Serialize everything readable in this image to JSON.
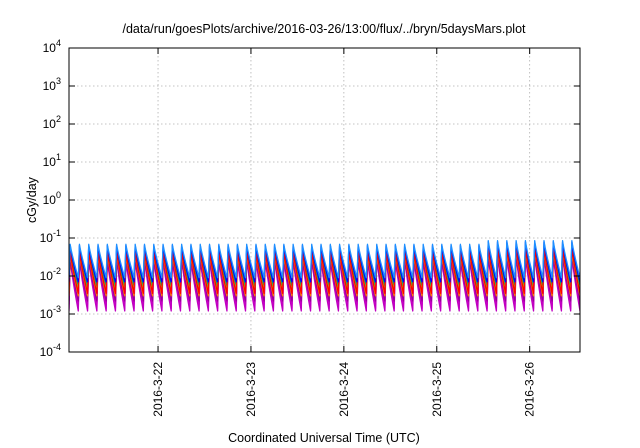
{
  "chart_data": {
    "type": "line",
    "title": "/data/run/goesPlots/archive/2016-03-26/13:00/flux/../bryn/5daysMars.plot",
    "xlabel": "Coordinated Universal Time (UTC)",
    "ylabel": "cGy/day",
    "y_scale": "log",
    "ylim": [
      0.0001,
      10000
    ],
    "y_ticks": [
      {
        "value": 0.0001,
        "base": "10",
        "exp": "-4"
      },
      {
        "value": 0.001,
        "base": "10",
        "exp": "-3"
      },
      {
        "value": 0.01,
        "base": "10",
        "exp": "-2"
      },
      {
        "value": 0.1,
        "base": "10",
        "exp": "-1"
      },
      {
        "value": 1,
        "base": "10",
        "exp": "0"
      },
      {
        "value": 10,
        "base": "10",
        "exp": "1"
      },
      {
        "value": 100,
        "base": "10",
        "exp": "2"
      },
      {
        "value": 1000,
        "base": "10",
        "exp": "3"
      },
      {
        "value": 10000,
        "base": "10",
        "exp": "4"
      }
    ],
    "xlim": [
      "2016-03-21 01:00",
      "2016-03-26 13:00"
    ],
    "x_ticks": [
      {
        "value": "2016-03-22 00:00",
        "label": "2016-3-22"
      },
      {
        "value": "2016-03-23 00:00",
        "label": "2016-3-23"
      },
      {
        "value": "2016-03-24 00:00",
        "label": "2016-3-24"
      },
      {
        "value": "2016-03-25 00:00",
        "label": "2016-3-25"
      },
      {
        "value": "2016-03-26 00:00",
        "label": "2016-3-26"
      }
    ],
    "grid": true,
    "legend": "none",
    "cycles_per_day": 10,
    "series": [
      {
        "color": "#ff00ff",
        "peak": 0.03,
        "trough": 0.0014
      },
      {
        "color": "#cc00cc",
        "peak": 0.034,
        "trough": 0.0018
      },
      {
        "color": "#c000c0",
        "peak": 0.028,
        "trough": 0.0012
      },
      {
        "color": "#990099",
        "peak": 0.03,
        "trough": 0.0022
      },
      {
        "color": "#00bfbf",
        "peak": 0.05,
        "trough": 0.005
      },
      {
        "color": "#008b8b",
        "peak": 0.045,
        "trough": 0.006
      },
      {
        "color": "#00a050",
        "peak": 0.04,
        "trough": 0.0045
      },
      {
        "color": "#7fff00",
        "peak": 0.04,
        "trough": 0.004
      },
      {
        "color": "#ff7f00",
        "peak": 0.04,
        "trough": 0.003
      },
      {
        "color": "#ff0000",
        "peak": 0.045,
        "trough": 0.0035
      },
      {
        "color": "#0000ff",
        "peak": 0.065,
        "trough": 0.007
      },
      {
        "color": "#1e90ff",
        "peak": 0.07,
        "trough": 0.009
      }
    ]
  }
}
